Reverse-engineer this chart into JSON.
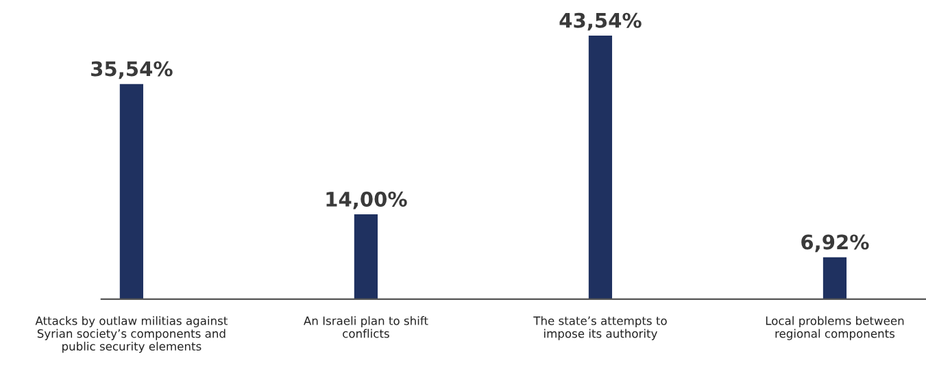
{
  "chart_data": {
    "type": "bar",
    "categories": [
      "Attacks by outlaw militias against\nSyrian society’s components and\npublic security elements",
      "An Israeli plan to shift\nconflicts",
      "The state’s attempts to\nimpose its authority",
      "Local problems between\nregional components"
    ],
    "values": [
      35.54,
      14.0,
      43.54,
      6.92
    ],
    "value_labels": [
      "35,54%",
      "14,00%",
      "43,54%",
      "6,92%"
    ],
    "color": "#1f3160",
    "tick_labels": "x",
    "grid": false,
    "legend": false
  }
}
